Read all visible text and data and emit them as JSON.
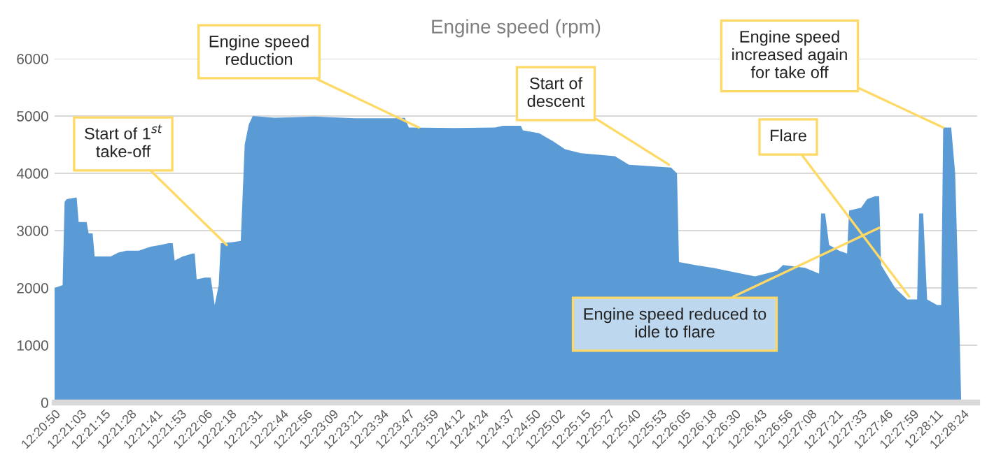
{
  "chart_data": {
    "type": "area",
    "title": "Engine speed (rpm)",
    "x": [
      12.34722,
      12.34833,
      12.34861,
      12.34889,
      12.35028,
      12.35056,
      12.35167,
      12.35194,
      12.3525,
      12.35278,
      12.355,
      12.35611,
      12.35722,
      12.35889,
      12.36056,
      12.36194,
      12.36306,
      12.36361,
      12.36389,
      12.365,
      12.36639,
      12.36667,
      12.36694,
      12.36806,
      12.36889,
      12.36944,
      12.37,
      12.37028,
      12.37194,
      12.37306,
      12.37361,
      12.37417,
      12.37472,
      12.37778,
      12.38333,
      12.38889,
      12.39444,
      12.39583,
      12.39639,
      12.40278,
      12.40833,
      12.40944,
      12.41194,
      12.41222,
      12.41444,
      12.41639,
      12.41806,
      12.42028,
      12.425,
      12.42694,
      12.43278,
      12.43361,
      12.43389,
      12.43611,
      12.43861,
      12.4425,
      12.44444,
      12.4475,
      12.44833,
      12.45139,
      12.45333,
      12.45361,
      12.45417,
      12.45472,
      12.45611,
      12.45722,
      12.4575,
      12.45917,
      12.46,
      12.46111,
      12.46167,
      12.46194,
      12.46389,
      12.46556,
      12.46694,
      12.46722,
      12.46778,
      12.46833,
      12.46972,
      12.47028,
      12.47056,
      12.47167,
      12.47222,
      12.47278,
      12.47306
    ],
    "series": [
      {
        "color": "#5b9bd5",
        "values": [
          2000,
          2050,
          3500,
          3550,
          3580,
          3150,
          3150,
          2950,
          2950,
          2550,
          2550,
          2620,
          2650,
          2650,
          2720,
          2750,
          2780,
          2780,
          2480,
          2550,
          2600,
          2600,
          2150,
          2180,
          2180,
          1700,
          2050,
          2780,
          2800,
          2820,
          4500,
          4850,
          5000,
          4970,
          4990,
          4960,
          4960,
          4970,
          4800,
          4790,
          4800,
          4830,
          4830,
          4750,
          4700,
          4560,
          4420,
          4350,
          4300,
          4150,
          4100,
          4000,
          2450,
          2400,
          2350,
          2250,
          2200,
          2300,
          2400,
          2350,
          2250,
          3300,
          3300,
          2750,
          2650,
          2600,
          3350,
          3400,
          3550,
          3600,
          3600,
          2400,
          2000,
          1800,
          1800,
          3300,
          3300,
          1800,
          1700,
          1700,
          4800,
          4800,
          4000,
          1500,
          0
        ]
      }
    ],
    "xlim": [
      12.34722,
      12.47528
    ],
    "xticks": [
      {
        "value": 12.34722,
        "label": "12:20:50"
      },
      {
        "value": 12.35083,
        "label": "12:21:03"
      },
      {
        "value": 12.35417,
        "label": "12:21:15"
      },
      {
        "value": 12.35778,
        "label": "12:21:28"
      },
      {
        "value": 12.36139,
        "label": "12:21:41"
      },
      {
        "value": 12.36472,
        "label": "12:21:53"
      },
      {
        "value": 12.36833,
        "label": "12:22:06"
      },
      {
        "value": 12.37167,
        "label": "12:22:18"
      },
      {
        "value": 12.37528,
        "label": "12:22:31"
      },
      {
        "value": 12.37889,
        "label": "12:22:44"
      },
      {
        "value": 12.38222,
        "label": "12:22:56"
      },
      {
        "value": 12.38583,
        "label": "12:23:09"
      },
      {
        "value": 12.38917,
        "label": "12:23:21"
      },
      {
        "value": 12.39278,
        "label": "12:23:34"
      },
      {
        "value": 12.39639,
        "label": "12:23:47"
      },
      {
        "value": 12.39972,
        "label": "12:23:59"
      },
      {
        "value": 12.40333,
        "label": "12:24:12"
      },
      {
        "value": 12.40667,
        "label": "12:24:24"
      },
      {
        "value": 12.41028,
        "label": "12:24:37"
      },
      {
        "value": 12.41389,
        "label": "12:24:50"
      },
      {
        "value": 12.41722,
        "label": "12:25:02"
      },
      {
        "value": 12.42083,
        "label": "12:25:15"
      },
      {
        "value": 12.42417,
        "label": "12:25:27"
      },
      {
        "value": 12.42778,
        "label": "12:25:40"
      },
      {
        "value": 12.43139,
        "label": "12:25:53"
      },
      {
        "value": 12.43472,
        "label": "12:26:05"
      },
      {
        "value": 12.43833,
        "label": "12:26:18"
      },
      {
        "value": 12.44167,
        "label": "12:26:30"
      },
      {
        "value": 12.44528,
        "label": "12:26:43"
      },
      {
        "value": 12.44889,
        "label": "12:26:56"
      },
      {
        "value": 12.45222,
        "label": "12:27:08"
      },
      {
        "value": 12.45583,
        "label": "12:27:21"
      },
      {
        "value": 12.45917,
        "label": "12:27:33"
      },
      {
        "value": 12.46278,
        "label": "12:27:46"
      },
      {
        "value": 12.46639,
        "label": "12:27:59"
      },
      {
        "value": 12.46972,
        "label": "12:28:11"
      },
      {
        "value": 12.47333,
        "label": "12:28:24"
      }
    ],
    "ylim": [
      0,
      6000
    ],
    "yticks": [
      0,
      1000,
      2000,
      3000,
      4000,
      5000,
      6000
    ],
    "grid": "y",
    "annotations": [
      {
        "text": "Start of 1$^{st}$\ntake-off",
        "x": 12.37111,
        "y": 2750
      },
      {
        "text": "Engine speed\nreduction",
        "x": 12.39778,
        "y": 4800
      },
      {
        "text": "Start of\ndescent",
        "x": 12.4325,
        "y": 4150
      },
      {
        "text": "Engine speed\nincreased again\nfor take off",
        "x": 12.47056,
        "y": 4800
      },
      {
        "text": "Flare",
        "x": 12.46583,
        "y": 1850
      },
      {
        "text": "Engine speed reduced to\nidle to flare",
        "x": 12.46167,
        "y": 3050
      }
    ]
  }
}
